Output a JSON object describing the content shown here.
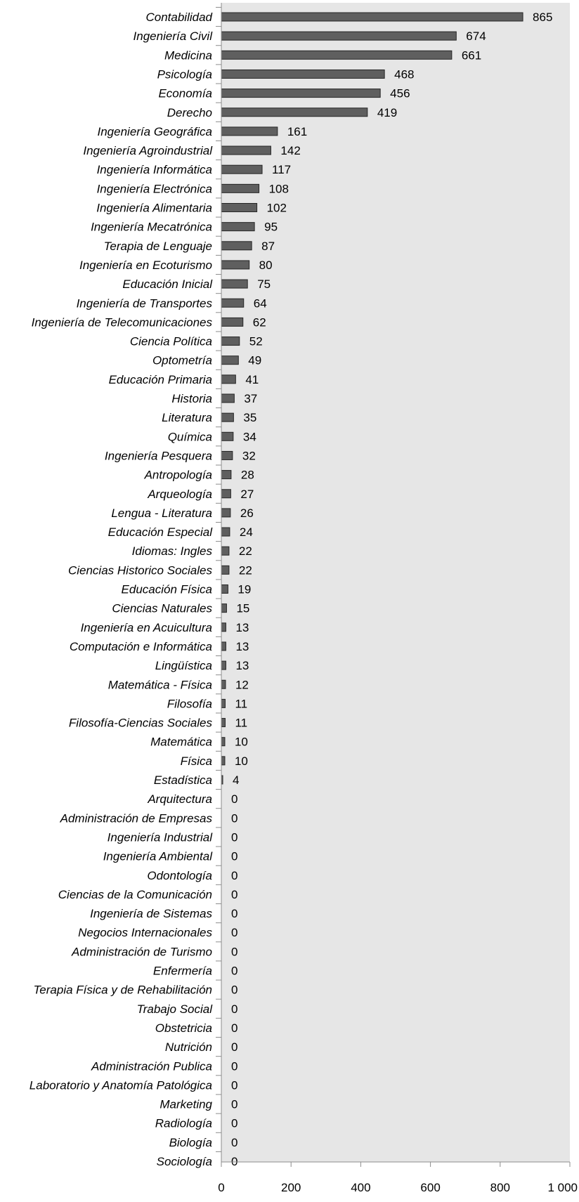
{
  "colors": {
    "plot_background": "#e6e6e6",
    "bar_fill": "#5f5f5f",
    "bar_stroke": "#262626",
    "axis": "#8c8c8c"
  },
  "chart_data": {
    "type": "bar",
    "orientation": "horizontal",
    "categories": [
      "Contabilidad",
      "Ingeniería Civil",
      "Medicina",
      "Psicología",
      "Economía",
      "Derecho",
      "Ingeniería Geográfica",
      "Ingeniería Agroindustrial",
      "Ingeniería Informática",
      "Ingeniería Electrónica",
      "Ingeniería Alimentaria",
      "Ingeniería Mecatrónica",
      "Terapia de Lenguaje",
      "Ingeniería en Ecoturismo",
      "Educación Inicial",
      "Ingeniería de Transportes",
      "Ingeniería de Telecomunicaciones",
      "Ciencia Política",
      "Optometría",
      "Educación Primaria",
      "Historia",
      "Literatura",
      "Química",
      "Ingeniería Pesquera",
      "Antropología",
      "Arqueología",
      "Lengua - Literatura",
      "Educación Especial",
      "Idiomas: Ingles",
      "Ciencias Historico Sociales",
      "Educación Física",
      "Ciencias Naturales",
      "Ingeniería en Acuicultura",
      "Computación e Informática",
      "Lingüística",
      "Matemática - Física",
      "Filosofía",
      "Filosofía-Ciencias Sociales",
      "Matemática",
      "Física",
      "Estadística",
      "Arquitectura",
      "Administración de Empresas",
      "Ingeniería Industrial",
      "Ingeniería Ambiental",
      "Odontología",
      "Ciencias de la Comunicación",
      "Ingeniería de Sistemas",
      "Negocios Internacionales",
      "Administración de Turismo",
      "Enfermería",
      "Terapia Física y de Rehabilitación",
      "Trabajo Social",
      "Obstetricia",
      "Nutrición",
      "Administración Publica",
      "Laboratorio y Anatomía Patológica",
      "Marketing",
      "Radiología",
      "Biología",
      "Sociología"
    ],
    "values": [
      865,
      674,
      661,
      468,
      456,
      419,
      161,
      142,
      117,
      108,
      102,
      95,
      87,
      80,
      75,
      64,
      62,
      52,
      49,
      41,
      37,
      35,
      34,
      32,
      28,
      27,
      26,
      24,
      22,
      22,
      19,
      15,
      13,
      13,
      13,
      12,
      11,
      11,
      10,
      10,
      4,
      0,
      0,
      0,
      0,
      0,
      0,
      0,
      0,
      0,
      0,
      0,
      0,
      0,
      0,
      0,
      0,
      0,
      0,
      0,
      0
    ],
    "value_labels": [
      "865",
      "674",
      "661",
      "468",
      "456",
      "419",
      "161",
      "142",
      "117",
      "108",
      "102",
      "95",
      "87",
      "80",
      "75",
      "64",
      "62",
      "52",
      "49",
      "41",
      "37",
      "35",
      "34",
      "32",
      "28",
      "27",
      "26",
      "24",
      "22",
      "22",
      "19",
      "15",
      "13",
      "13",
      "13",
      "12",
      "11",
      "11",
      "10",
      "10",
      "4",
      "0",
      "0",
      "0",
      "0",
      "0",
      "0",
      "0",
      "0",
      "0",
      "0",
      "0",
      "0",
      "0",
      "0",
      "0",
      "0",
      "0",
      "0",
      "0",
      "0"
    ],
    "xlim": [
      0,
      1000
    ],
    "x_ticks": [
      0,
      200,
      400,
      600,
      800,
      1000
    ],
    "x_tick_labels": [
      "0",
      "200",
      "400",
      "600",
      "800",
      "1 000"
    ],
    "title": "",
    "xlabel": "",
    "ylabel": "",
    "grid": false,
    "legend": "none"
  }
}
